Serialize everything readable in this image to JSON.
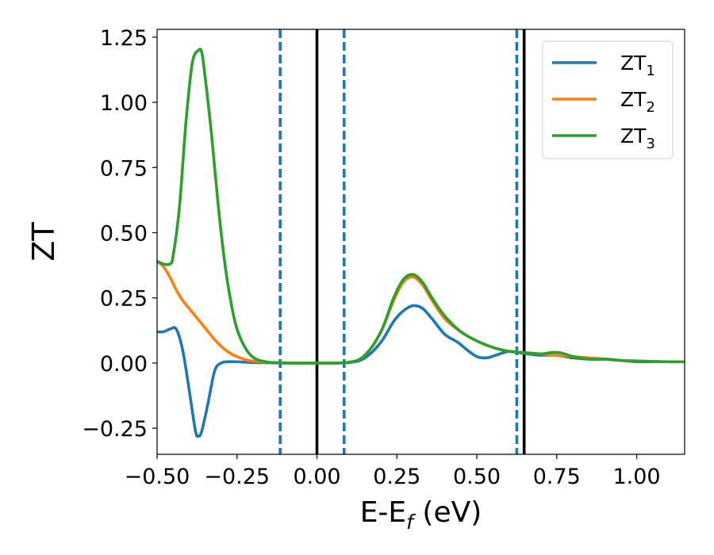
{
  "chart_data": {
    "type": "line",
    "xlabel_main": "E-E",
    "xlabel_sub": "f",
    "xlabel_unit": " (eV)",
    "ylabel": "ZT",
    "xlim": [
      -0.5,
      1.15
    ],
    "ylim": [
      -0.35,
      1.28
    ],
    "x_ticks": [
      -0.5,
      -0.25,
      0.0,
      0.25,
      0.5,
      0.75,
      1.0
    ],
    "x_tick_labels": [
      "−0.50",
      "−0.25",
      "0.00",
      "0.25",
      "0.50",
      "0.75",
      "1.00"
    ],
    "y_ticks": [
      -0.25,
      0.0,
      0.25,
      0.5,
      0.75,
      1.0,
      1.25
    ],
    "y_tick_labels": [
      "−0.25",
      "0.00",
      "0.25",
      "0.50",
      "0.75",
      "1.00",
      "1.25"
    ],
    "grid": false,
    "legend_position": "top-right",
    "vertical_lines": [
      {
        "x": -0.115,
        "style": "dashed",
        "color": "#1f77b4"
      },
      {
        "x": 0.0,
        "style": "solid",
        "color": "#000000"
      },
      {
        "x": 0.085,
        "style": "dashed",
        "color": "#1f77b4"
      },
      {
        "x": 0.625,
        "style": "dashed",
        "color": "#1f77b4"
      },
      {
        "x": 0.648,
        "style": "solid",
        "color": "#000000"
      }
    ],
    "series": [
      {
        "name": "ZT",
        "subscript": "1",
        "color": "#1f77b4",
        "x": [
          -0.5,
          -0.48,
          -0.46,
          -0.44,
          -0.42,
          -0.4,
          -0.38,
          -0.37,
          -0.36,
          -0.34,
          -0.32,
          -0.3,
          -0.28,
          -0.25,
          -0.2,
          -0.1,
          0.0,
          0.1,
          0.15,
          0.2,
          0.24,
          0.27,
          0.3,
          0.33,
          0.36,
          0.4,
          0.44,
          0.47,
          0.5,
          0.53,
          0.56,
          0.6,
          0.63,
          0.66,
          0.7,
          0.75,
          0.8,
          0.85,
          0.9,
          0.95,
          1.0,
          1.05,
          1.1,
          1.15
        ],
        "values": [
          0.12,
          0.12,
          0.13,
          0.13,
          0.05,
          -0.1,
          -0.26,
          -0.28,
          -0.26,
          -0.15,
          -0.03,
          0.0,
          0.005,
          0.005,
          0.002,
          0.0,
          0.0,
          0.002,
          0.02,
          0.08,
          0.16,
          0.2,
          0.22,
          0.21,
          0.17,
          0.11,
          0.08,
          0.05,
          0.025,
          0.02,
          0.03,
          0.045,
          0.04,
          0.035,
          0.03,
          0.03,
          0.02,
          0.015,
          0.015,
          0.01,
          0.005,
          0.005,
          0.005,
          0.005
        ]
      },
      {
        "name": "ZT",
        "subscript": "2",
        "color": "#ff7f0e",
        "x": [
          -0.5,
          -0.48,
          -0.46,
          -0.44,
          -0.42,
          -0.4,
          -0.38,
          -0.36,
          -0.34,
          -0.32,
          -0.3,
          -0.28,
          -0.26,
          -0.24,
          -0.22,
          -0.2,
          -0.15,
          -0.1,
          0.0,
          0.1,
          0.15,
          0.2,
          0.24,
          0.27,
          0.3,
          0.33,
          0.36,
          0.4,
          0.45,
          0.5,
          0.55,
          0.6,
          0.65,
          0.7,
          0.75,
          0.8,
          0.85,
          0.9,
          0.95,
          1.0,
          1.05,
          1.1,
          1.15
        ],
        "values": [
          0.39,
          0.37,
          0.33,
          0.28,
          0.24,
          0.21,
          0.18,
          0.15,
          0.12,
          0.09,
          0.065,
          0.045,
          0.03,
          0.02,
          0.012,
          0.008,
          0.003,
          0.001,
          0.0,
          0.003,
          0.03,
          0.12,
          0.24,
          0.31,
          0.33,
          0.3,
          0.24,
          0.17,
          0.12,
          0.085,
          0.06,
          0.045,
          0.04,
          0.035,
          0.03,
          0.025,
          0.02,
          0.015,
          0.01,
          0.008,
          0.006,
          0.005,
          0.005
        ]
      },
      {
        "name": "ZT",
        "subscript": "3",
        "color": "#2ca02c",
        "x": [
          -0.5,
          -0.48,
          -0.46,
          -0.45,
          -0.43,
          -0.41,
          -0.39,
          -0.37,
          -0.36,
          -0.35,
          -0.33,
          -0.31,
          -0.29,
          -0.27,
          -0.25,
          -0.22,
          -0.19,
          -0.15,
          -0.12,
          -0.1,
          0.0,
          0.1,
          0.15,
          0.2,
          0.24,
          0.27,
          0.3,
          0.33,
          0.36,
          0.4,
          0.45,
          0.5,
          0.55,
          0.6,
          0.65,
          0.7,
          0.73,
          0.76,
          0.8,
          0.85,
          0.9,
          0.95,
          1.0,
          1.05,
          1.1,
          1.15
        ],
        "values": [
          0.39,
          0.38,
          0.38,
          0.41,
          0.6,
          0.92,
          1.15,
          1.2,
          1.19,
          1.1,
          0.88,
          0.62,
          0.4,
          0.24,
          0.13,
          0.05,
          0.015,
          0.003,
          0.001,
          0.0,
          0.0,
          0.003,
          0.03,
          0.12,
          0.25,
          0.32,
          0.34,
          0.31,
          0.25,
          0.18,
          0.12,
          0.085,
          0.06,
          0.045,
          0.04,
          0.035,
          0.04,
          0.04,
          0.025,
          0.015,
          0.015,
          0.01,
          0.008,
          0.006,
          0.005,
          0.005
        ]
      }
    ]
  }
}
